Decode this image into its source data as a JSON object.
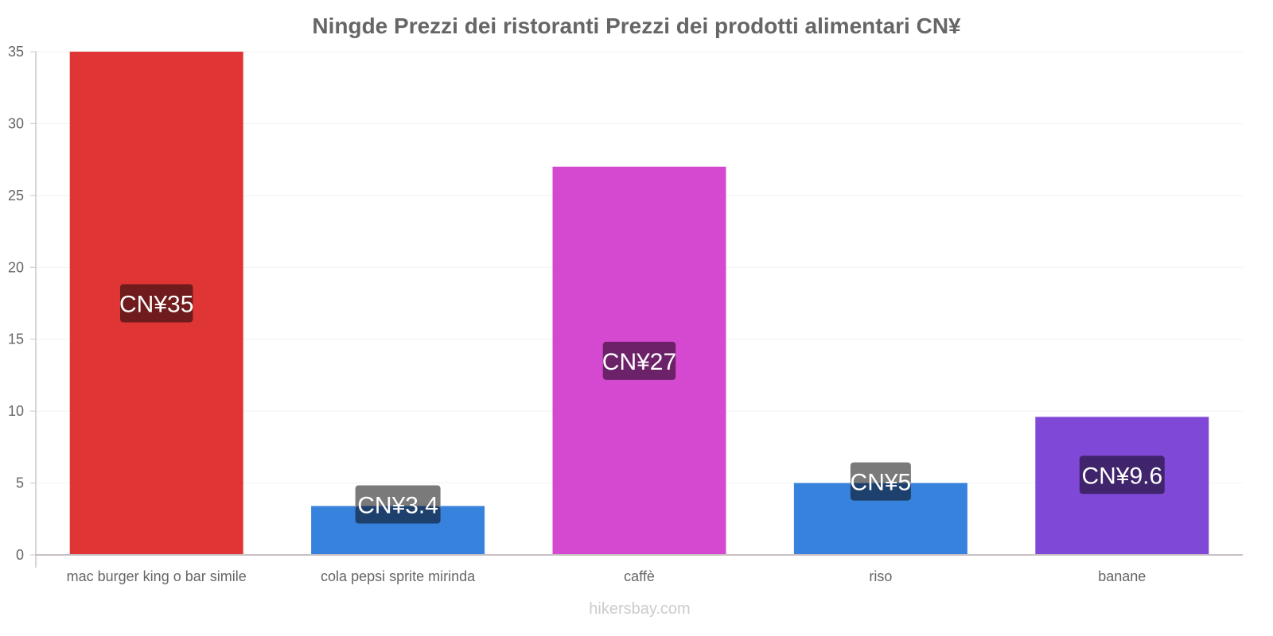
{
  "chart_data": {
    "type": "bar",
    "title": "Ningde Prezzi dei ristoranti Prezzi dei prodotti alimentari CN¥",
    "xlabel": "",
    "ylabel": "",
    "ylim": [
      0,
      35
    ],
    "yticks": [
      0,
      5,
      10,
      15,
      20,
      25,
      30,
      35
    ],
    "grid": true,
    "legend": null,
    "categories": [
      "mac burger king o bar simile",
      "cola pepsi sprite mirinda",
      "caffè",
      "riso",
      "banane"
    ],
    "values": [
      35,
      3.4,
      27,
      5,
      9.6
    ],
    "data_labels": [
      "CN¥35",
      "CN¥3.4",
      "CN¥27",
      "CN¥5",
      "CN¥9.6"
    ],
    "bar_colors": [
      "#e03535",
      "#3682dc",
      "#d549d1",
      "#3682dc",
      "#8048d6"
    ],
    "label_bg_colors": [
      "#701c1c",
      "#1e406c",
      "#6c2268",
      "#1e406c",
      "#40246c"
    ]
  },
  "footer": {
    "source": "hikersbay.com"
  },
  "colors": {
    "text": "#666666",
    "axis": "#c8c0c4",
    "grid": "#f2f2f2",
    "footer": "#cccccc"
  }
}
